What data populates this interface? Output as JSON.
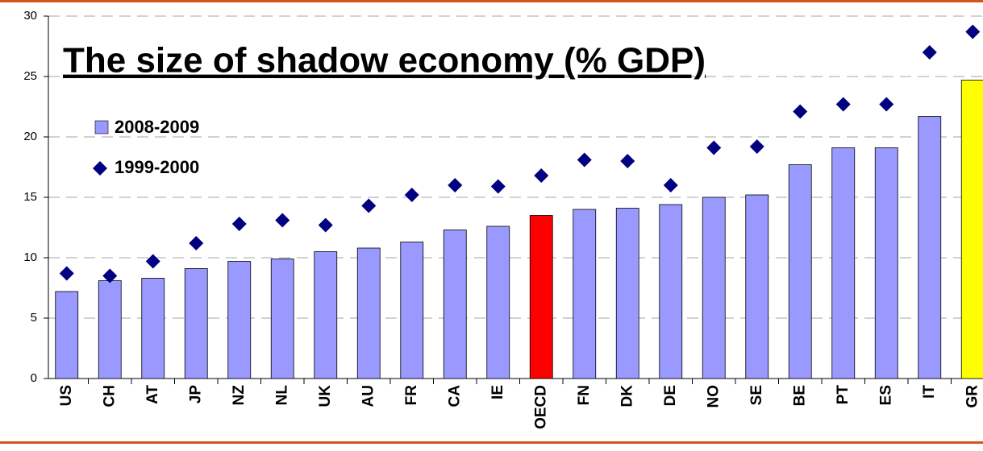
{
  "chart_data": {
    "type": "bar_diamond",
    "title": "The size of shadow economy (% GDP)",
    "categories": [
      "US",
      "CH",
      "AT",
      "JP",
      "NZ",
      "NL",
      "UK",
      "AU",
      "FR",
      "CA",
      "IE",
      "OECD",
      "FN",
      "DK",
      "DE",
      "NO",
      "SE",
      "BE",
      "PT",
      "ES",
      "IT",
      "GR"
    ],
    "series": [
      {
        "name": "2008-2009",
        "color": "#9999ff",
        "colors": [
          "#9999ff",
          "#9999ff",
          "#9999ff",
          "#9999ff",
          "#9999ff",
          "#9999ff",
          "#9999ff",
          "#9999ff",
          "#9999ff",
          "#9999ff",
          "#9999ff",
          "#ff0000",
          "#9999ff",
          "#9999ff",
          "#9999ff",
          "#9999ff",
          "#9999ff",
          "#9999ff",
          "#9999ff",
          "#9999ff",
          "#9999ff",
          "#ffff00"
        ],
        "values": [
          7.2,
          8.1,
          8.3,
          9.1,
          9.7,
          9.9,
          10.5,
          10.8,
          11.3,
          12.3,
          12.6,
          13.5,
          14.0,
          14.1,
          14.4,
          15.0,
          15.2,
          17.7,
          19.1,
          19.1,
          21.7,
          24.7
        ]
      },
      {
        "name": "1999-2000",
        "color": "#000080",
        "values": [
          8.7,
          8.5,
          9.7,
          11.2,
          12.8,
          13.1,
          12.7,
          14.3,
          15.2,
          16.0,
          15.9,
          16.8,
          18.1,
          18.0,
          16.0,
          19.1,
          19.2,
          22.1,
          22.7,
          22.7,
          27.0,
          28.7
        ]
      }
    ],
    "ylim": [
      0,
      30
    ],
    "yticks": [
      0,
      5,
      10,
      15,
      20,
      25,
      30
    ],
    "grid": true
  }
}
